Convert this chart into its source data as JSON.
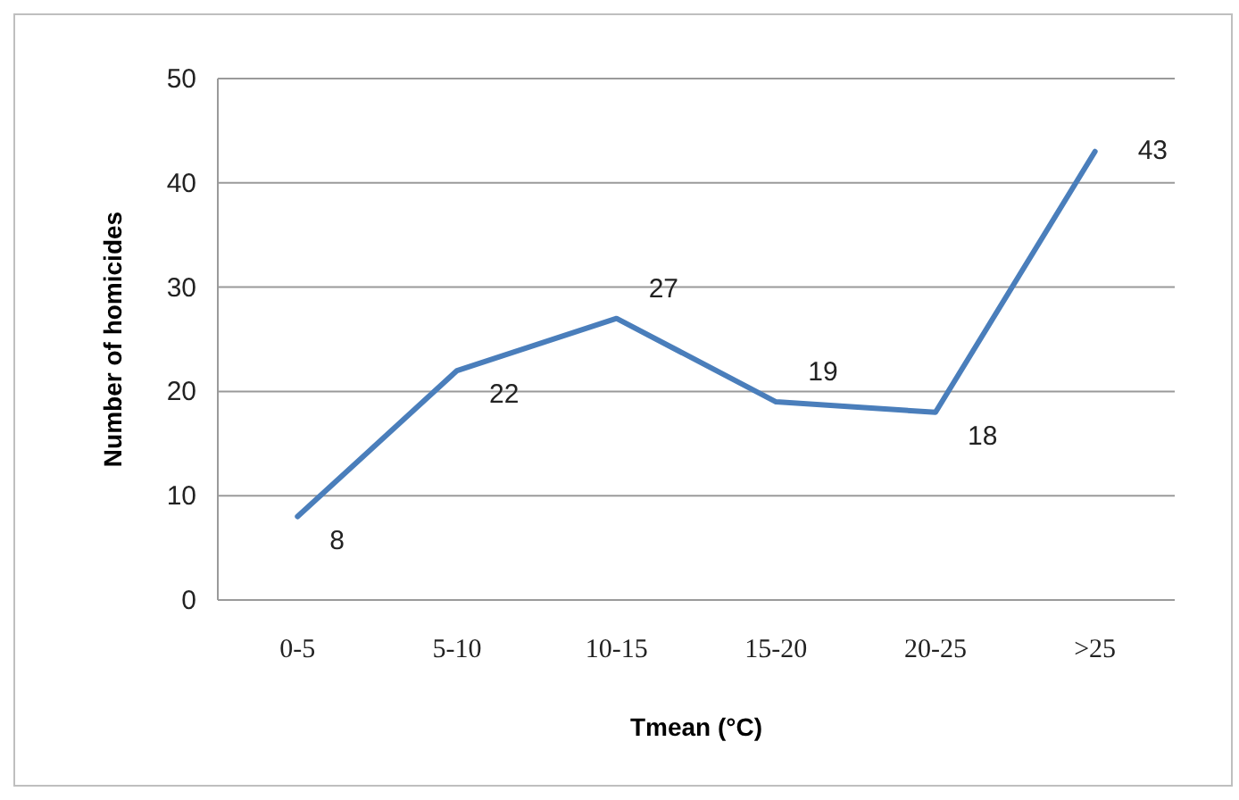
{
  "chart_data": {
    "type": "line",
    "xlabel": "Tmean (°C)",
    "ylabel": "Number of homicides",
    "categories": [
      "0-5",
      "5-10",
      "10-15",
      "15-20",
      "20-25",
      ">25"
    ],
    "series": [
      {
        "color": "#4a7ebb",
        "values": [
          8,
          22,
          27,
          19,
          18,
          43
        ]
      }
    ],
    "ylim": [
      0,
      50
    ],
    "yticks": [
      0,
      10,
      20,
      30,
      40,
      50
    ],
    "grid": "y",
    "data_labels": true,
    "marker": "none",
    "line_style": "solid"
  }
}
